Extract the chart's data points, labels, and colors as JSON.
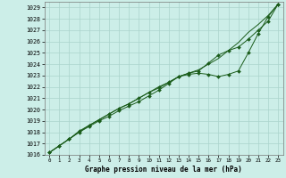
{
  "title": "Graphe pression niveau de la mer (hPa)",
  "xlim": [
    -0.5,
    23.5
  ],
  "ylim": [
    1016.0,
    1029.5
  ],
  "yticks": [
    1016,
    1017,
    1018,
    1019,
    1020,
    1021,
    1022,
    1023,
    1024,
    1025,
    1026,
    1027,
    1028,
    1029
  ],
  "xticks": [
    0,
    1,
    2,
    3,
    4,
    5,
    6,
    7,
    8,
    9,
    10,
    11,
    12,
    13,
    14,
    15,
    16,
    17,
    18,
    19,
    20,
    21,
    22,
    23
  ],
  "bg_color": "#cceee8",
  "grid_color": "#aad4cc",
  "line_color": "#1a5c1a",
  "series_linear_x": [
    0,
    1,
    2,
    3,
    4,
    5,
    6,
    7,
    8,
    9,
    10,
    11,
    12,
    13,
    14,
    15,
    16,
    17,
    18,
    19,
    20,
    21,
    22,
    23
  ],
  "series_linear_y": [
    1016.2,
    1016.8,
    1017.4,
    1018.0,
    1018.6,
    1019.1,
    1019.6,
    1020.1,
    1020.5,
    1021.0,
    1021.5,
    1021.9,
    1022.4,
    1022.9,
    1023.2,
    1023.5,
    1024.0,
    1024.5,
    1025.2,
    1025.9,
    1026.8,
    1027.5,
    1028.3,
    1029.3
  ],
  "series_upper_x": [
    0,
    1,
    2,
    3,
    4,
    5,
    6,
    7,
    8,
    9,
    10,
    11,
    12,
    13,
    14,
    15,
    16,
    17,
    18,
    19,
    20,
    21,
    22,
    23
  ],
  "series_upper_y": [
    1016.2,
    1016.8,
    1017.4,
    1018.0,
    1018.5,
    1019.0,
    1019.4,
    1019.9,
    1020.3,
    1020.7,
    1021.2,
    1021.7,
    1022.3,
    1022.9,
    1023.1,
    1023.2,
    1023.1,
    1022.9,
    1023.1,
    1023.4,
    1025.0,
    1026.7,
    1028.2,
    1029.3
  ],
  "series_lower_x": [
    0,
    1,
    2,
    3,
    4,
    5,
    6,
    7,
    8,
    9,
    10,
    11,
    12,
    13,
    14,
    15,
    16,
    17,
    18,
    19,
    20,
    21,
    22,
    23
  ],
  "series_lower_y": [
    1016.2,
    1016.8,
    1017.4,
    1018.1,
    1018.6,
    1019.1,
    1019.6,
    1020.1,
    1020.5,
    1021.0,
    1021.5,
    1022.0,
    1022.4,
    1022.9,
    1023.2,
    1023.4,
    1024.1,
    1024.8,
    1025.2,
    1025.5,
    1026.2,
    1027.0,
    1027.8,
    1029.3
  ]
}
